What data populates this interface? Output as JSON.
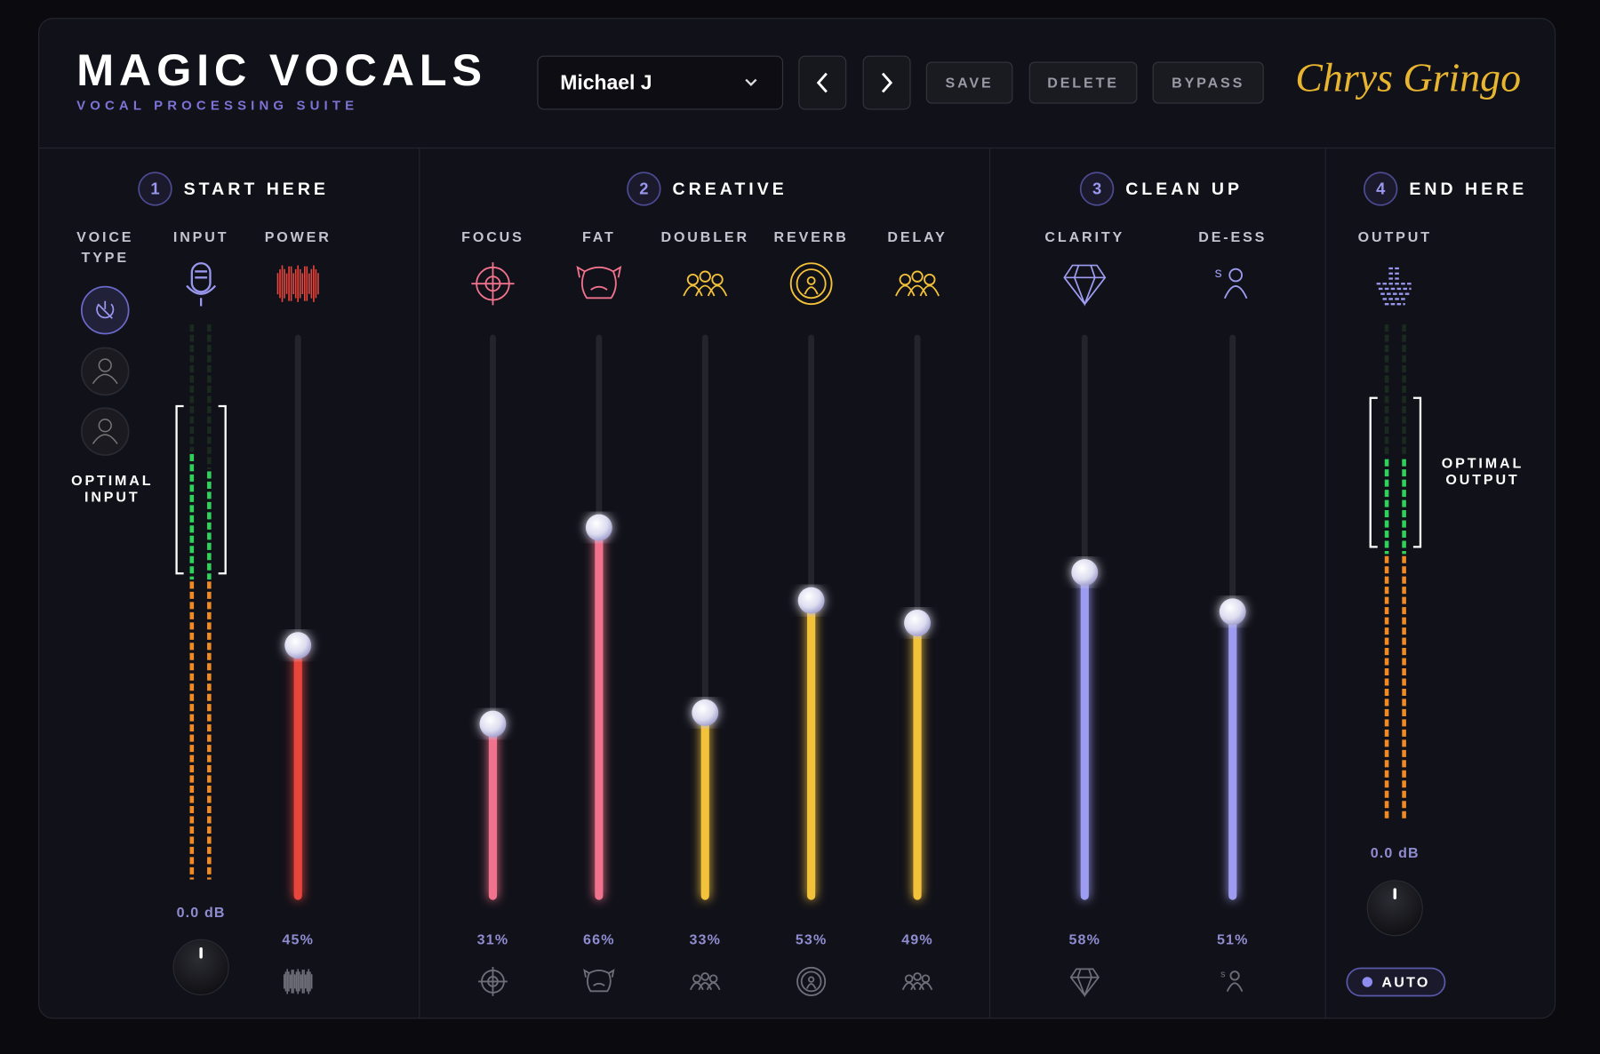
{
  "header": {
    "title": "MAGIC VOCALS",
    "subtitle": "VOCAL PROCESSING SUITE",
    "preset": "Michael J",
    "buttons": [
      "SAVE",
      "DELETE",
      "BYPASS"
    ],
    "signature": "Chrys Gringo"
  },
  "sections": [
    {
      "number": 1,
      "title": "START HERE"
    },
    {
      "number": 2,
      "title": "CREATIVE"
    },
    {
      "number": 3,
      "title": "CLEAN UP"
    },
    {
      "number": 4,
      "title": "END HERE"
    }
  ],
  "voice_type": {
    "label_lines": [
      "VOICE",
      "TYPE"
    ],
    "note_lines": [
      "OPTIMAL",
      "INPUT"
    ]
  },
  "input": {
    "label": "INPUT",
    "gain": "0.0 dB"
  },
  "sliders": [
    {
      "label": "POWER",
      "value": 45,
      "value_label": "45%",
      "color": "#e8453c"
    },
    {
      "label": "FOCUS",
      "value": 31,
      "value_label": "31%",
      "color": "#f0728c"
    },
    {
      "label": "FAT",
      "value": 66,
      "value_label": "66%",
      "color": "#f0728c"
    },
    {
      "label": "DOUBLER",
      "value": 33,
      "value_label": "33%",
      "color": "#f3c23a"
    },
    {
      "label": "REVERB",
      "value": 53,
      "value_label": "53%",
      "color": "#f3c23a"
    },
    {
      "label": "DELAY",
      "value": 49,
      "value_label": "49%",
      "color": "#f3c23a"
    },
    {
      "label": "CLARITY",
      "value": 58,
      "value_label": "58%",
      "color": "#9d9cf0"
    },
    {
      "label": "DE-ESS",
      "value": 51,
      "value_label": "51%",
      "color": "#9d9cf0"
    }
  ],
  "output": {
    "label": "OUTPUT",
    "note_lines": [
      "OPTIMAL",
      "OUTPUT"
    ],
    "gain": "0.0 dB",
    "auto": "AUTO"
  }
}
